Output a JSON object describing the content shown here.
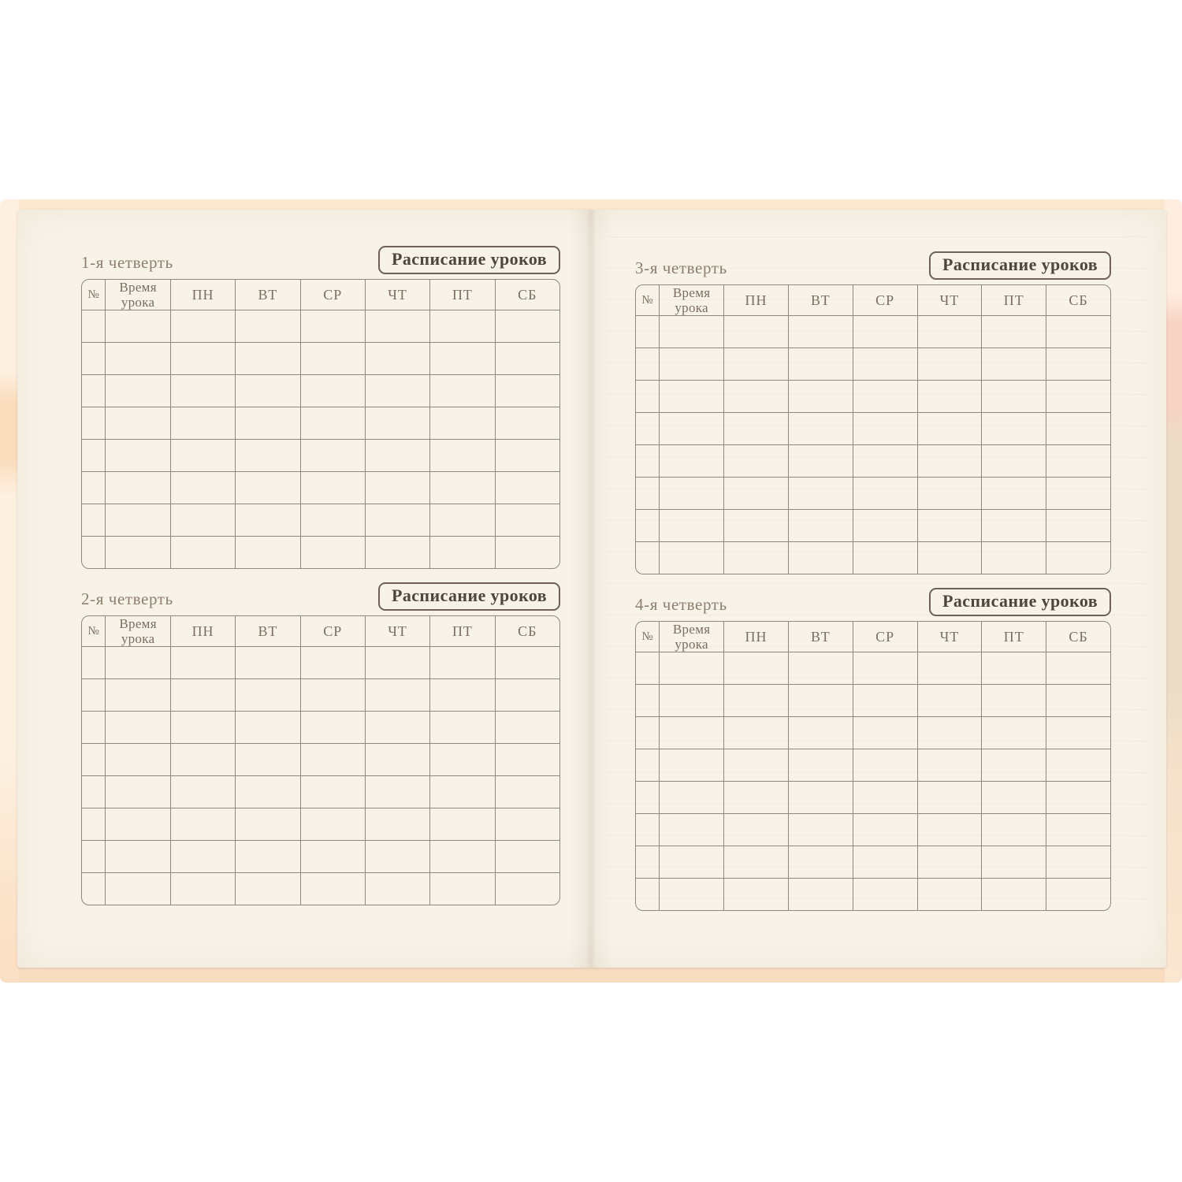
{
  "scene": {
    "description": "Open school diary spread with four quarterly lesson-schedule tables",
    "background_color": "#ffffff",
    "cover_color": "#f9dfc6",
    "page_color": "#f8f3e9",
    "grid_line_color": "#94867a",
    "badge_text_color": "#4e453c",
    "label_text_color": "#8d7e6d"
  },
  "schedules": [
    {
      "quarter_label": "1-я четверть",
      "title": "Расписание уроков",
      "row_count": 8,
      "columns": [
        "№",
        "Время урока",
        "ПН",
        "ВТ",
        "СР",
        "ЧТ",
        "ПТ",
        "СБ"
      ]
    },
    {
      "quarter_label": "2-я четверть",
      "title": "Расписание уроков",
      "row_count": 8,
      "columns": [
        "№",
        "Время урока",
        "ПН",
        "ВТ",
        "СР",
        "ЧТ",
        "ПТ",
        "СБ"
      ]
    },
    {
      "quarter_label": "3-я четверть",
      "title": "Расписание уроков",
      "row_count": 8,
      "columns": [
        "№",
        "Время урока",
        "ПН",
        "ВТ",
        "СР",
        "ЧТ",
        "ПТ",
        "СБ"
      ]
    },
    {
      "quarter_label": "4-я четверть",
      "title": "Расписание уроков",
      "row_count": 8,
      "columns": [
        "№",
        "Время урока",
        "ПН",
        "ВТ",
        "СР",
        "ЧТ",
        "ПТ",
        "СБ"
      ]
    }
  ]
}
